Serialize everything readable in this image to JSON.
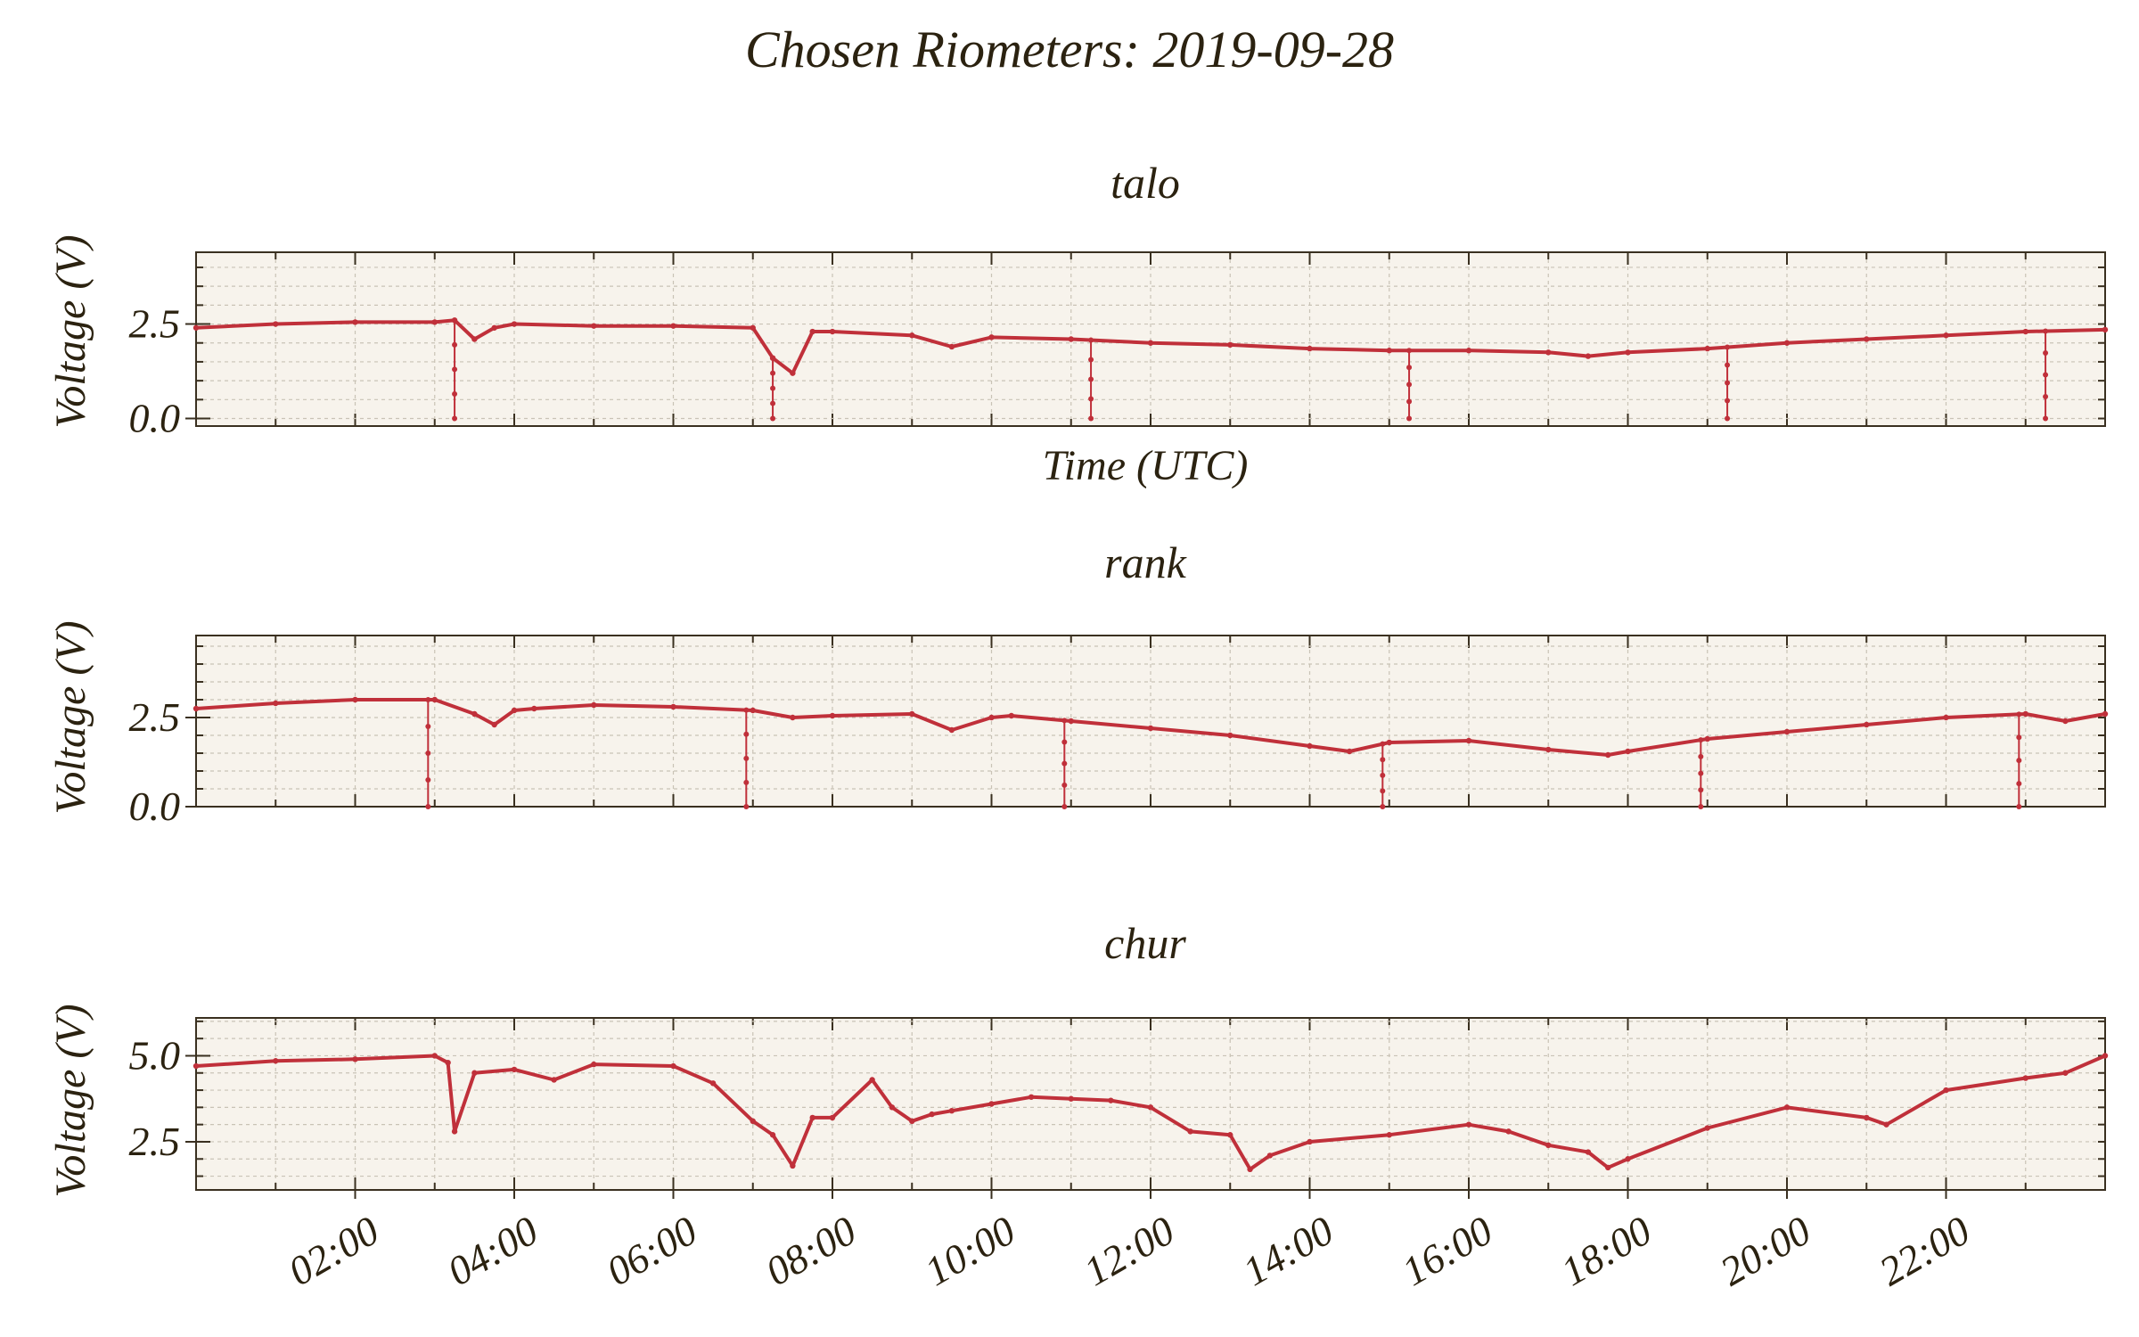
{
  "figure": {
    "title": "Chosen Riometers: 2019-09-28",
    "series_color": "#c0303a",
    "background": "#f7f3ec",
    "text_color": "#2b2210"
  },
  "chart_data": [
    {
      "type": "line",
      "title": "talo",
      "xlabel": "Time (UTC)",
      "ylabel": "Voltage (V)",
      "xlim": [
        "00:00",
        "24:00"
      ],
      "ylim": [
        -0.2,
        4.4
      ],
      "yticks": [
        "0.0",
        "2.5"
      ],
      "xticks": [],
      "grid": true,
      "series": [
        {
          "x": [
            "00:00",
            "01:00",
            "02:00",
            "03:00",
            "03:15",
            "03:30",
            "03:45",
            "04:00",
            "05:00",
            "06:00",
            "07:00",
            "07:15",
            "07:30",
            "07:45",
            "08:00",
            "09:00",
            "09:30",
            "10:00",
            "11:00",
            "12:00",
            "13:00",
            "14:00",
            "15:00",
            "16:00",
            "17:00",
            "17:30",
            "18:00",
            "19:00",
            "20:00",
            "21:00",
            "22:00",
            "23:00",
            "24:00"
          ],
          "y": [
            2.4,
            2.5,
            2.55,
            2.55,
            2.6,
            2.1,
            2.4,
            2.5,
            2.45,
            2.45,
            2.4,
            1.6,
            1.2,
            2.3,
            2.3,
            2.2,
            1.9,
            2.15,
            2.1,
            2.0,
            1.95,
            1.85,
            1.8,
            1.8,
            1.75,
            1.65,
            1.75,
            1.85,
            2.0,
            2.1,
            2.2,
            2.3,
            2.35
          ]
        }
      ],
      "dropouts": [
        "03:15",
        "07:15",
        "11:15",
        "15:15",
        "19:15",
        "23:15"
      ]
    },
    {
      "type": "line",
      "title": "rank",
      "xlabel": "",
      "ylabel": "Voltage (V)",
      "xlim": [
        "00:00",
        "24:00"
      ],
      "ylim": [
        0,
        4.8
      ],
      "yticks": [
        "0.0",
        "2.5"
      ],
      "xticks": [],
      "grid": true,
      "series": [
        {
          "x": [
            "00:00",
            "01:00",
            "02:00",
            "03:00",
            "03:30",
            "03:45",
            "04:00",
            "04:15",
            "05:00",
            "06:00",
            "07:00",
            "07:30",
            "08:00",
            "09:00",
            "09:30",
            "10:00",
            "10:15",
            "11:00",
            "12:00",
            "13:00",
            "14:00",
            "14:30",
            "15:00",
            "16:00",
            "17:00",
            "17:45",
            "18:00",
            "19:00",
            "20:00",
            "21:00",
            "22:00",
            "23:00",
            "23:30",
            "24:00"
          ],
          "y": [
            2.75,
            2.9,
            3.0,
            3.0,
            2.6,
            2.3,
            2.7,
            2.75,
            2.85,
            2.8,
            2.7,
            2.5,
            2.55,
            2.6,
            2.15,
            2.5,
            2.55,
            2.4,
            2.2,
            2.0,
            1.7,
            1.55,
            1.8,
            1.85,
            1.6,
            1.45,
            1.55,
            1.9,
            2.1,
            2.3,
            2.5,
            2.6,
            2.4,
            2.6
          ]
        }
      ],
      "dropouts": [
        "02:55",
        "06:55",
        "10:55",
        "14:55",
        "18:55",
        "22:55"
      ]
    },
    {
      "type": "line",
      "title": "chur",
      "xlabel": "",
      "ylabel": "Voltage (V)",
      "xlim": [
        "00:00",
        "24:00"
      ],
      "ylim": [
        1.1,
        6.1
      ],
      "yticks": [
        "2.5",
        "5.0"
      ],
      "xticks": [
        "02:00",
        "04:00",
        "06:00",
        "08:00",
        "10:00",
        "12:00",
        "14:00",
        "16:00",
        "18:00",
        "20:00",
        "22:00"
      ],
      "grid": true,
      "series": [
        {
          "x": [
            "00:00",
            "01:00",
            "02:00",
            "03:00",
            "03:10",
            "03:15",
            "03:30",
            "04:00",
            "04:30",
            "05:00",
            "06:00",
            "06:30",
            "07:00",
            "07:15",
            "07:30",
            "07:45",
            "08:00",
            "08:30",
            "08:45",
            "09:00",
            "09:15",
            "09:30",
            "10:00",
            "10:30",
            "11:00",
            "11:30",
            "12:00",
            "12:30",
            "13:00",
            "13:15",
            "13:30",
            "14:00",
            "15:00",
            "16:00",
            "16:30",
            "17:00",
            "17:30",
            "17:45",
            "18:00",
            "19:00",
            "20:00",
            "21:00",
            "21:15",
            "22:00",
            "23:00",
            "23:30",
            "24:00"
          ],
          "y": [
            4.7,
            4.85,
            4.9,
            5.0,
            4.8,
            2.8,
            4.5,
            4.6,
            4.3,
            4.75,
            4.7,
            4.2,
            3.1,
            2.7,
            1.8,
            3.2,
            3.2,
            4.3,
            3.5,
            3.1,
            3.3,
            3.4,
            3.6,
            3.8,
            3.75,
            3.7,
            3.5,
            2.8,
            2.7,
            1.7,
            2.1,
            2.5,
            2.7,
            3.0,
            2.8,
            2.4,
            2.2,
            1.75,
            2.0,
            2.9,
            3.5,
            3.2,
            3.0,
            4.0,
            4.35,
            4.5,
            5.0
          ]
        }
      ],
      "dropouts": []
    }
  ]
}
